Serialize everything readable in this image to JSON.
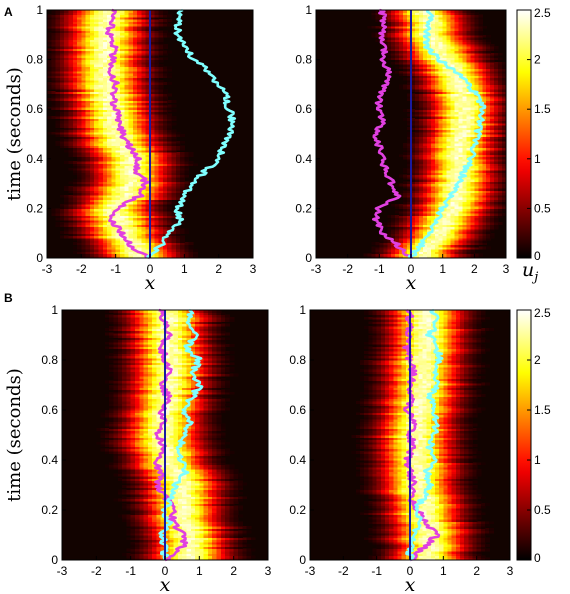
{
  "panel_labels": [
    "A",
    "B"
  ],
  "ylabel": "time (seconds)",
  "xlabel": "x",
  "colorbar_label": "u_j",
  "colors": {
    "hot_low": "#1a0500",
    "hot_mid": "#c81e00",
    "hot_high": "#ffe060",
    "hot_top": "#ffffff",
    "magenta_trace": "#e040e0",
    "cyan_trace": "#7fffff",
    "center_line": "#1a1aa0"
  },
  "colormap": "hot",
  "chart_data": [
    {
      "type": "heatmap",
      "panel": "A",
      "position": "left",
      "xlim": [
        -3,
        3
      ],
      "ylim": [
        0,
        1
      ],
      "xticks": [
        "-3",
        "-2",
        "-1",
        "0",
        "1",
        "2",
        "3"
      ],
      "yticks": [
        "0",
        "0.2",
        "0.4",
        "0.6",
        "0.8",
        "1"
      ],
      "xlabel": "x",
      "ylabel": "time (seconds)",
      "bump_center": {
        "t": [
          0,
          0.1,
          0.2,
          0.3,
          0.4,
          0.5,
          0.6,
          0.7,
          0.8,
          0.9,
          1.0
        ],
        "x": [
          -0.3,
          -0.8,
          -1.0,
          -0.5,
          -0.6,
          -1.0,
          -1.1,
          -1.3,
          -1.3,
          -1.3,
          -1.3
        ]
      },
      "series": [
        {
          "color": "magenta",
          "t": [
            0,
            0.05,
            0.1,
            0.15,
            0.2,
            0.25,
            0.3,
            0.35,
            0.4,
            0.45,
            0.5,
            0.55,
            0.6,
            0.65,
            0.7,
            0.75,
            0.8,
            0.85,
            0.9,
            0.95,
            1.0
          ],
          "x": [
            0,
            -0.6,
            -0.8,
            -1.1,
            -1.0,
            -0.3,
            -0.1,
            -0.4,
            -0.3,
            -0.6,
            -0.8,
            -0.9,
            -1.0,
            -1.1,
            -1.0,
            -1.2,
            -1.1,
            -1.0,
            -1.2,
            -1.1,
            -1.1
          ]
        },
        {
          "color": "cyan",
          "t": [
            0,
            0.05,
            0.1,
            0.15,
            0.2,
            0.25,
            0.3,
            0.35,
            0.4,
            0.45,
            0.5,
            0.55,
            0.6,
            0.65,
            0.7,
            0.75,
            0.8,
            0.85,
            0.9,
            0.95,
            1.0
          ],
          "x": [
            0,
            0.3,
            0.6,
            0.9,
            0.8,
            1.0,
            1.2,
            1.6,
            2.0,
            2.1,
            2.3,
            2.4,
            2.3,
            2.2,
            2.0,
            1.7,
            1.3,
            1.0,
            0.8,
            0.8,
            0.9
          ]
        },
        {
          "color": "blue",
          "t": [
            0,
            1
          ],
          "x": [
            0,
            0
          ]
        }
      ]
    },
    {
      "type": "heatmap",
      "panel": "A",
      "position": "right",
      "xlim": [
        -3,
        3
      ],
      "ylim": [
        0,
        1
      ],
      "xticks": [
        "-3",
        "-2",
        "-1",
        "0",
        "1",
        "2",
        "3"
      ],
      "yticks": [
        "0",
        "0.2",
        "0.4",
        "0.6",
        "0.8",
        "1"
      ],
      "xlabel": "x",
      "bump_center": {
        "t": [
          0,
          0.1,
          0.2,
          0.3,
          0.4,
          0.5,
          0.6,
          0.7,
          0.8,
          0.9,
          1.0
        ],
        "x": [
          0.3,
          0.9,
          1.3,
          1.5,
          1.5,
          1.6,
          1.7,
          1.6,
          1.1,
          0.6,
          0.5
        ]
      },
      "series": [
        {
          "color": "magenta",
          "t": [
            0,
            0.05,
            0.1,
            0.15,
            0.2,
            0.25,
            0.3,
            0.35,
            0.4,
            0.45,
            0.5,
            0.55,
            0.6,
            0.65,
            0.7,
            0.75,
            0.8,
            0.85,
            0.9,
            0.95,
            1.0
          ],
          "x": [
            0,
            -0.4,
            -0.9,
            -1.1,
            -1.0,
            -0.4,
            -0.6,
            -0.8,
            -0.9,
            -1.0,
            -1.1,
            -0.9,
            -1.0,
            -1.0,
            -0.8,
            -0.7,
            -0.9,
            -0.8,
            -0.9,
            -0.9,
            -0.9
          ]
        },
        {
          "color": "cyan",
          "t": [
            0,
            0.05,
            0.1,
            0.15,
            0.2,
            0.25,
            0.3,
            0.35,
            0.4,
            0.45,
            0.5,
            0.55,
            0.6,
            0.65,
            0.7,
            0.75,
            0.8,
            0.85,
            0.9,
            0.95,
            1.0
          ],
          "x": [
            0,
            0.3,
            0.6,
            0.8,
            1.0,
            1.3,
            1.5,
            1.7,
            1.9,
            2.0,
            2.1,
            2.2,
            2.3,
            2.1,
            1.8,
            1.4,
            0.9,
            0.5,
            0.5,
            0.6,
            0.6
          ]
        },
        {
          "color": "blue",
          "t": [
            0,
            1
          ],
          "x": [
            0,
            0
          ]
        }
      ]
    },
    {
      "type": "heatmap",
      "panel": "B",
      "position": "left",
      "xlim": [
        -3,
        3
      ],
      "ylim": [
        0,
        1
      ],
      "xticks": [
        "-3",
        "-2",
        "-1",
        "0",
        "1",
        "2",
        "3"
      ],
      "yticks": [
        "0",
        "0.2",
        "0.4",
        "0.6",
        "0.8",
        "1"
      ],
      "xlabel": "x",
      "ylabel": "time (seconds)",
      "bump_center": {
        "t": [
          0,
          0.1,
          0.2,
          0.3,
          0.4,
          0.5,
          0.6,
          0.7,
          0.8,
          0.9,
          1.0
        ],
        "x": [
          0.6,
          0.7,
          0.5,
          0.5,
          0.1,
          -0.1,
          0.0,
          0.1,
          0.2,
          0.1,
          0.1
        ]
      },
      "series": [
        {
          "color": "magenta",
          "t": [
            0,
            0.05,
            0.1,
            0.15,
            0.2,
            0.25,
            0.3,
            0.35,
            0.4,
            0.45,
            0.5,
            0.55,
            0.6,
            0.65,
            0.7,
            0.75,
            0.8,
            0.85,
            0.9,
            0.95,
            1.0
          ],
          "x": [
            0,
            0.5,
            0.6,
            0.2,
            0.3,
            0.0,
            -0.2,
            -0.1,
            -0.3,
            0.0,
            -0.2,
            0.0,
            -0.1,
            0.1,
            -0.1,
            0.2,
            0.0,
            -0.1,
            0.1,
            0.0,
            -0.1
          ]
        },
        {
          "color": "cyan",
          "t": [
            0,
            0.05,
            0.1,
            0.15,
            0.2,
            0.25,
            0.3,
            0.35,
            0.4,
            0.45,
            0.5,
            0.55,
            0.6,
            0.65,
            0.7,
            0.75,
            0.8,
            0.85,
            0.9,
            0.95,
            1.0
          ],
          "x": [
            0,
            0.0,
            -0.1,
            0.1,
            0.0,
            0.2,
            0.3,
            0.6,
            0.5,
            0.4,
            0.6,
            0.7,
            0.5,
            0.8,
            1.0,
            0.8,
            1.0,
            0.6,
            0.9,
            0.7,
            0.8
          ]
        },
        {
          "color": "blue",
          "t": [
            0,
            1
          ],
          "x": [
            0,
            0
          ]
        }
      ]
    },
    {
      "type": "heatmap",
      "panel": "B",
      "position": "right",
      "xlim": [
        -3,
        3
      ],
      "ylim": [
        0,
        1
      ],
      "xticks": [
        "-3",
        "-2",
        "-1",
        "0",
        "1",
        "2",
        "3"
      ],
      "yticks": [
        "0",
        "0.2",
        "0.4",
        "0.6",
        "0.8",
        "1"
      ],
      "xlabel": "x",
      "bump_center": {
        "t": [
          0,
          0.1,
          0.2,
          0.3,
          0.4,
          0.5,
          0.6,
          0.7,
          0.8,
          0.9,
          1.0
        ],
        "x": [
          0.6,
          0.6,
          0.4,
          0.3,
          0.2,
          0.2,
          0.3,
          0.4,
          0.4,
          0.5,
          0.5
        ]
      },
      "series": [
        {
          "color": "magenta",
          "t": [
            0,
            0.05,
            0.1,
            0.15,
            0.2,
            0.25,
            0.3,
            0.35,
            0.4,
            0.45,
            0.5,
            0.55,
            0.6,
            0.65,
            0.7,
            0.75,
            0.8,
            0.85,
            0.9,
            0.95,
            1.0
          ],
          "x": [
            0,
            0.4,
            0.8,
            0.5,
            0.2,
            0.0,
            0.1,
            0.0,
            -0.1,
            0.1,
            0.0,
            0.1,
            -0.1,
            0.1,
            0.0,
            0.1,
            0.0,
            -0.1,
            0.0,
            0.0,
            0.0
          ]
        },
        {
          "color": "cyan",
          "t": [
            0,
            0.05,
            0.1,
            0.15,
            0.2,
            0.25,
            0.3,
            0.35,
            0.4,
            0.45,
            0.5,
            0.55,
            0.6,
            0.65,
            0.7,
            0.75,
            0.8,
            0.85,
            0.9,
            0.95,
            1.0
          ],
          "x": [
            0,
            0.0,
            0.1,
            0.3,
            0.2,
            0.4,
            0.6,
            0.5,
            0.7,
            0.6,
            0.7,
            0.8,
            0.7,
            0.6,
            0.8,
            0.7,
            0.9,
            0.8,
            0.6,
            0.8,
            0.7
          ]
        },
        {
          "color": "blue",
          "t": [
            0,
            1
          ],
          "x": [
            0,
            0
          ]
        }
      ]
    }
  ],
  "colorbar": {
    "ticks": [
      "0",
      "0.5",
      "1",
      "1.5",
      "2",
      "2.5"
    ],
    "values": [
      0,
      0.5,
      1,
      1.5,
      2,
      2.5
    ],
    "range": [
      0,
      2.5
    ]
  }
}
